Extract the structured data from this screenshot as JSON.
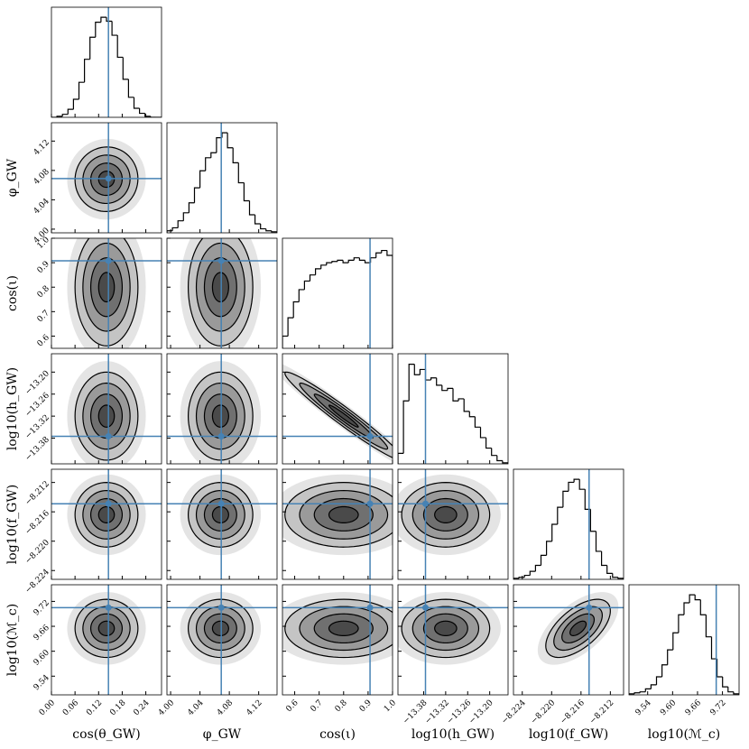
{
  "chart_data": {
    "type": "corner",
    "color": "#000000",
    "truth_color": "#4682b4",
    "params": [
      {
        "label": "cos(θ_GW)",
        "truth": 0.145,
        "mean": 0.14,
        "sd": 0.04,
        "xlim": [
          0,
          0.28
        ],
        "xticks": [
          {
            "value": 0,
            "label": "0.00"
          },
          0.06,
          0.12,
          0.18,
          0.24
        ],
        "bins": [
          0,
          0.014,
          0.028,
          0.042,
          0.056,
          0.07,
          0.084,
          0.098,
          0.112,
          0.126,
          0.14,
          0.154,
          0.168,
          0.182,
          0.196,
          0.21,
          0.224,
          0.238,
          0.252,
          0.266,
          0.28
        ],
        "counts": [
          0,
          1,
          3,
          8,
          18,
          35,
          58,
          80,
          95,
          100,
          96,
          82,
          60,
          38,
          20,
          9,
          4,
          1,
          0,
          0
        ],
        "ylim": [
          0,
          110
        ]
      },
      {
        "label": "φ_GW",
        "truth": 4.069,
        "mean": 4.068,
        "sd": 0.022,
        "xlim": [
          3.995,
          4.145
        ],
        "xticks": [
          {
            "value": 4,
            "label": "4.00"
          },
          4.04,
          4.08,
          4.12
        ],
        "bins": [
          3.995,
          4.0025,
          4.01,
          4.0175,
          4.025,
          4.0325,
          4.04,
          4.0475,
          4.055,
          4.0625,
          4.07,
          4.0775,
          4.085,
          4.0925,
          4.1,
          4.1075,
          4.115,
          4.1225,
          4.13,
          4.1375,
          4.145
        ],
        "counts": [
          2,
          5,
          12,
          20,
          30,
          45,
          62,
          75,
          80,
          95,
          100,
          85,
          70,
          50,
          32,
          18,
          9,
          4,
          2,
          1
        ],
        "ylim": [
          0,
          110
        ]
      },
      {
        "label": "cos(ι)",
        "truth": 0.908,
        "mean": 0.8,
        "sd": 0.12,
        "xlim": [
          0.55,
          1
        ],
        "xticks": [
          0.6,
          0.7,
          0.8,
          0.9,
          {
            "value": 1,
            "label": "1.0"
          }
        ],
        "bins": [
          0.55,
          0.5725,
          0.595,
          0.6175,
          0.64,
          0.6625,
          0.685,
          0.7075,
          0.73,
          0.7525,
          0.775,
          0.7975,
          0.82,
          0.8425,
          0.865,
          0.8875,
          0.91,
          0.9325,
          0.955,
          0.9775,
          1
        ],
        "counts": [
          10,
          25,
          38,
          48,
          55,
          60,
          65,
          68,
          70,
          71,
          72,
          70,
          72,
          74,
          72,
          70,
          74,
          78,
          80,
          76
        ],
        "ylim": [
          0,
          90
        ]
      },
      {
        "label": "log10(h_GW)",
        "truth": -13.375,
        "mean": -13.32,
        "sd": 0.06,
        "xlim": [
          -13.45,
          -13.15
        ],
        "xticks": [
          {
            "value": -13.38,
            "label": "−13.38"
          },
          {
            "value": -13.32,
            "label": "−13.32"
          },
          {
            "value": -13.26,
            "label": "−13.26"
          },
          {
            "value": -13.2,
            "label": "−13.20"
          }
        ],
        "bins": [
          -13.45,
          -13.435,
          -13.42,
          -13.405,
          -13.39,
          -13.375,
          -13.36,
          -13.345,
          -13.33,
          -13.315,
          -13.3,
          -13.285,
          -13.27,
          -13.255,
          -13.24,
          -13.225,
          -13.21,
          -13.195,
          -13.18,
          -13.165,
          -13.15
        ],
        "counts": [
          10,
          60,
          95,
          85,
          90,
          80,
          82,
          75,
          70,
          72,
          60,
          62,
          50,
          45,
          35,
          25,
          15,
          8,
          3,
          1
        ],
        "ylim": [
          0,
          105
        ]
      },
      {
        "label": "log10(f_GW)",
        "truth": -8.2149,
        "mean": -8.2164,
        "sd": 0.0022,
        "xlim": [
          -8.2252,
          -8.2102
        ],
        "xticks": [
          {
            "value": -8.224,
            "label": "−8.224"
          },
          {
            "value": -8.22,
            "label": "−8.220"
          },
          {
            "value": -8.216,
            "label": "−8.216"
          },
          {
            "value": -8.212,
            "label": "−8.212"
          }
        ],
        "bins": [
          -8.2252,
          -8.22445,
          -8.2237,
          -8.22295,
          -8.2222,
          -8.22145,
          -8.2207,
          -8.21995,
          -8.2192,
          -8.21845,
          -8.2177,
          -8.21695,
          -8.2162,
          -8.21545,
          -8.2147,
          -8.21395,
          -8.2132,
          -8.21245,
          -8.2117,
          -8.21095,
          -8.2102
        ],
        "counts": [
          1,
          2,
          4,
          8,
          14,
          24,
          38,
          55,
          72,
          88,
          97,
          100,
          90,
          70,
          48,
          28,
          14,
          6,
          2,
          1
        ],
        "ylim": [
          0,
          110
        ]
      },
      {
        "label": "log10(ℳ_c)",
        "truth": 9.705,
        "mean": 9.655,
        "sd": 0.035,
        "xlim": [
          9.495,
          9.76
        ],
        "xticks": [
          9.54,
          {
            "value": 9.6,
            "label": "9.60"
          },
          9.66,
          9.72
        ],
        "bins": [
          9.495,
          9.50825,
          9.5215,
          9.53475,
          9.548,
          9.56125,
          9.5745,
          9.58775,
          9.601,
          9.61425,
          9.6275,
          9.64075,
          9.654,
          9.66725,
          9.6805,
          9.69375,
          9.707,
          9.72025,
          9.7335,
          9.74675,
          9.76
        ],
        "counts": [
          1,
          2,
          3,
          6,
          10,
          18,
          30,
          45,
          62,
          80,
          92,
          100,
          95,
          80,
          58,
          36,
          18,
          8,
          3,
          1
        ],
        "ylim": [
          0,
          110
        ]
      }
    ],
    "pairs": [
      {
        "x": 0,
        "y": 1,
        "corr": 0.02
      },
      {
        "x": 0,
        "y": 2,
        "corr": 0
      },
      {
        "x": 1,
        "y": 2,
        "corr": 0
      },
      {
        "x": 0,
        "y": 3,
        "corr": 0
      },
      {
        "x": 1,
        "y": 3,
        "corr": 0
      },
      {
        "x": 2,
        "y": 3,
        "corr": -0.97
      },
      {
        "x": 0,
        "y": 4,
        "corr": 0
      },
      {
        "x": 1,
        "y": 4,
        "corr": 0
      },
      {
        "x": 2,
        "y": 4,
        "corr": 0
      },
      {
        "x": 3,
        "y": 4,
        "corr": 0
      },
      {
        "x": 0,
        "y": 5,
        "corr": 0
      },
      {
        "x": 1,
        "y": 5,
        "corr": 0
      },
      {
        "x": 2,
        "y": 5,
        "corr": 0
      },
      {
        "x": 3,
        "y": 5,
        "corr": 0
      },
      {
        "x": 4,
        "y": 5,
        "corr": 0.6
      }
    ]
  }
}
